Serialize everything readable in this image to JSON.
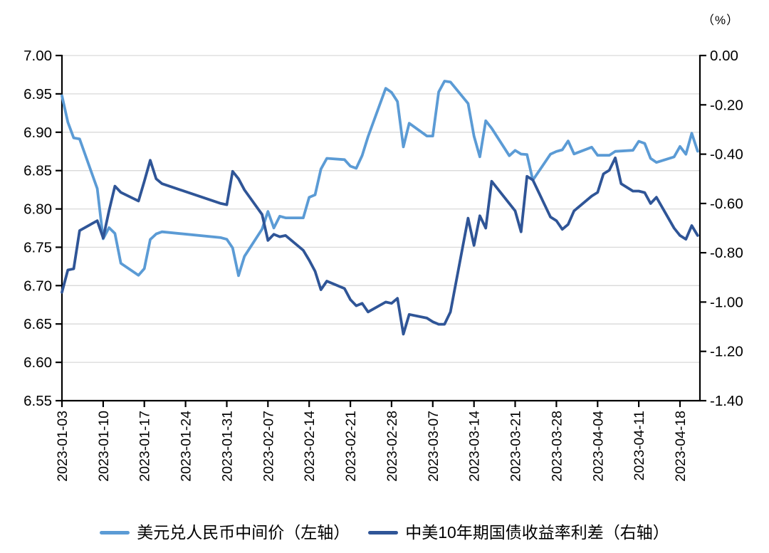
{
  "chart_data": {
    "type": "line",
    "title": "",
    "grid": "horizontal",
    "legend_position": "bottom",
    "colors": {
      "grid": "#D9D9D9",
      "axis": "#000000",
      "tick_text": "#000000"
    },
    "x_axis": {
      "start": "2023-01-03",
      "tick_interval_days": 7,
      "tick_labels": [
        "2023-01-03",
        "2023-01-10",
        "2023-01-17",
        "2023-01-24",
        "2023-01-31",
        "2023-02-07",
        "2023-02-14",
        "2023-02-21",
        "2023-02-28",
        "2023-03-07",
        "2023-03-14",
        "2023-03-21",
        "2023-03-28",
        "2023-04-04",
        "2023-04-11",
        "2023-04-18"
      ]
    },
    "left_axis": {
      "min": 6.55,
      "max": 7.0,
      "step": 0.05,
      "tick_labels": [
        "7.00",
        "6.95",
        "6.90",
        "6.85",
        "6.80",
        "6.75",
        "6.70",
        "6.65",
        "6.60",
        "6.55"
      ]
    },
    "right_axis": {
      "min": -1.4,
      "max": 0.0,
      "step": 0.2,
      "unit": "（%）",
      "tick_labels": [
        "0.00",
        "-0.20",
        "-0.40",
        "-0.60",
        "-0.80",
        "-1.00",
        "-1.20",
        "-1.40"
      ]
    },
    "series": [
      {
        "name": "美元兑人民币中间价（左轴）",
        "axis": "left",
        "color": "#5B9BD5",
        "points": [
          [
            "2023-01-03",
            6.9475
          ],
          [
            "2023-01-04",
            6.9131
          ],
          [
            "2023-01-05",
            6.8926
          ],
          [
            "2023-01-06",
            6.8912
          ],
          [
            "2023-01-09",
            6.8265
          ],
          [
            "2023-01-10",
            6.7611
          ],
          [
            "2023-01-11",
            6.7756
          ],
          [
            "2023-01-12",
            6.768
          ],
          [
            "2023-01-13",
            6.7292
          ],
          [
            "2023-01-16",
            6.7135
          ],
          [
            "2023-01-17",
            6.7222
          ],
          [
            "2023-01-18",
            6.7602
          ],
          [
            "2023-01-19",
            6.7674
          ],
          [
            "2023-01-20",
            6.7702
          ],
          [
            "2023-01-30",
            6.7626
          ],
          [
            "2023-01-31",
            6.7604
          ],
          [
            "2023-02-01",
            6.7492
          ],
          [
            "2023-02-02",
            6.713
          ],
          [
            "2023-02-03",
            6.7382
          ],
          [
            "2023-02-06",
            6.7737
          ],
          [
            "2023-02-07",
            6.7967
          ],
          [
            "2023-02-08",
            6.7752
          ],
          [
            "2023-02-09",
            6.7905
          ],
          [
            "2023-02-10",
            6.7884
          ],
          [
            "2023-02-13",
            6.7884
          ],
          [
            "2023-02-14",
            6.8151
          ],
          [
            "2023-02-15",
            6.8183
          ],
          [
            "2023-02-16",
            6.8519
          ],
          [
            "2023-02-17",
            6.8659
          ],
          [
            "2023-02-20",
            6.8643
          ],
          [
            "2023-02-21",
            6.8557
          ],
          [
            "2023-02-22",
            6.853
          ],
          [
            "2023-02-23",
            6.8695
          ],
          [
            "2023-02-24",
            6.8942
          ],
          [
            "2023-02-27",
            6.9572
          ],
          [
            "2023-02-28",
            6.9519
          ],
          [
            "2023-03-01",
            6.94
          ],
          [
            "2023-03-02",
            6.8809
          ],
          [
            "2023-03-03",
            6.9117
          ],
          [
            "2023-03-06",
            6.8951
          ],
          [
            "2023-03-07",
            6.8951
          ],
          [
            "2023-03-08",
            6.9525
          ],
          [
            "2023-03-09",
            6.9666
          ],
          [
            "2023-03-10",
            6.9655
          ],
          [
            "2023-03-13",
            6.9375
          ],
          [
            "2023-03-14",
            6.8949
          ],
          [
            "2023-03-15",
            6.868
          ],
          [
            "2023-03-16",
            6.9149
          ],
          [
            "2023-03-17",
            6.9052
          ],
          [
            "2023-03-20",
            6.8694
          ],
          [
            "2023-03-21",
            6.8763
          ],
          [
            "2023-03-22",
            6.8715
          ],
          [
            "2023-03-23",
            6.8709
          ],
          [
            "2023-03-24",
            6.8374
          ],
          [
            "2023-03-27",
            6.8714
          ],
          [
            "2023-03-28",
            6.8749
          ],
          [
            "2023-03-29",
            6.8771
          ],
          [
            "2023-03-30",
            6.8886
          ],
          [
            "2023-03-31",
            6.8717
          ],
          [
            "2023-04-03",
            6.8805
          ],
          [
            "2023-04-04",
            6.8699
          ],
          [
            "2023-04-06",
            6.8699
          ],
          [
            "2023-04-07",
            6.875
          ],
          [
            "2023-04-10",
            6.8764
          ],
          [
            "2023-04-11",
            6.8882
          ],
          [
            "2023-04-12",
            6.8854
          ],
          [
            "2023-04-13",
            6.8658
          ],
          [
            "2023-04-14",
            6.8606
          ],
          [
            "2023-04-17",
            6.8679
          ],
          [
            "2023-04-18",
            6.8814
          ],
          [
            "2023-04-19",
            6.8713
          ],
          [
            "2023-04-20",
            6.8987
          ],
          [
            "2023-04-21",
            6.8752
          ]
        ]
      },
      {
        "name": "中美10年期国债收益率利差（右轴）",
        "axis": "right",
        "color": "#2F5597",
        "points": [
          [
            "2023-01-03",
            -0.96
          ],
          [
            "2023-01-04",
            -0.87
          ],
          [
            "2023-01-05",
            -0.865
          ],
          [
            "2023-01-06",
            -0.71
          ],
          [
            "2023-01-09",
            -0.67
          ],
          [
            "2023-01-10",
            -0.74
          ],
          [
            "2023-01-11",
            -0.63
          ],
          [
            "2023-01-12",
            -0.53
          ],
          [
            "2023-01-13",
            -0.555
          ],
          [
            "2023-01-16",
            -0.59
          ],
          [
            "2023-01-17",
            -0.51
          ],
          [
            "2023-01-18",
            -0.425
          ],
          [
            "2023-01-19",
            -0.5
          ],
          [
            "2023-01-20",
            -0.52
          ],
          [
            "2023-01-30",
            -0.6
          ],
          [
            "2023-01-31",
            -0.605
          ],
          [
            "2023-02-01",
            -0.47
          ],
          [
            "2023-02-02",
            -0.5
          ],
          [
            "2023-02-03",
            -0.545
          ],
          [
            "2023-02-06",
            -0.645
          ],
          [
            "2023-02-07",
            -0.75
          ],
          [
            "2023-02-08",
            -0.725
          ],
          [
            "2023-02-09",
            -0.735
          ],
          [
            "2023-02-10",
            -0.73
          ],
          [
            "2023-02-13",
            -0.79
          ],
          [
            "2023-02-14",
            -0.83
          ],
          [
            "2023-02-15",
            -0.875
          ],
          [
            "2023-02-16",
            -0.95
          ],
          [
            "2023-02-17",
            -0.915
          ],
          [
            "2023-02-20",
            -0.945
          ],
          [
            "2023-02-21",
            -0.99
          ],
          [
            "2023-02-22",
            -1.015
          ],
          [
            "2023-02-23",
            -1.005
          ],
          [
            "2023-02-24",
            -1.04
          ],
          [
            "2023-02-27",
            -1.0
          ],
          [
            "2023-02-28",
            -1.005
          ],
          [
            "2023-03-01",
            -0.985
          ],
          [
            "2023-03-02",
            -1.13
          ],
          [
            "2023-03-03",
            -1.05
          ],
          [
            "2023-03-06",
            -1.065
          ],
          [
            "2023-03-07",
            -1.08
          ],
          [
            "2023-03-08",
            -1.09
          ],
          [
            "2023-03-09",
            -1.09
          ],
          [
            "2023-03-10",
            -1.04
          ],
          [
            "2023-03-13",
            -0.66
          ],
          [
            "2023-03-14",
            -0.77
          ],
          [
            "2023-03-15",
            -0.65
          ],
          [
            "2023-03-16",
            -0.7
          ],
          [
            "2023-03-17",
            -0.51
          ],
          [
            "2023-03-20",
            -0.6
          ],
          [
            "2023-03-21",
            -0.63
          ],
          [
            "2023-03-22",
            -0.715
          ],
          [
            "2023-03-23",
            -0.49
          ],
          [
            "2023-03-24",
            -0.505
          ],
          [
            "2023-03-27",
            -0.655
          ],
          [
            "2023-03-28",
            -0.67
          ],
          [
            "2023-03-29",
            -0.705
          ],
          [
            "2023-03-30",
            -0.685
          ],
          [
            "2023-03-31",
            -0.63
          ],
          [
            "2023-04-03",
            -0.57
          ],
          [
            "2023-04-04",
            -0.555
          ],
          [
            "2023-04-05",
            -0.48
          ],
          [
            "2023-04-06",
            -0.465
          ],
          [
            "2023-04-07",
            -0.415
          ],
          [
            "2023-04-08",
            -0.52
          ],
          [
            "2023-04-10",
            -0.55
          ],
          [
            "2023-04-11",
            -0.55
          ],
          [
            "2023-04-12",
            -0.556
          ],
          [
            "2023-04-13",
            -0.6
          ],
          [
            "2023-04-14",
            -0.575
          ],
          [
            "2023-04-17",
            -0.7
          ],
          [
            "2023-04-18",
            -0.73
          ],
          [
            "2023-04-19",
            -0.745
          ],
          [
            "2023-04-20",
            -0.69
          ],
          [
            "2023-04-21",
            -0.73
          ]
        ]
      }
    ]
  }
}
